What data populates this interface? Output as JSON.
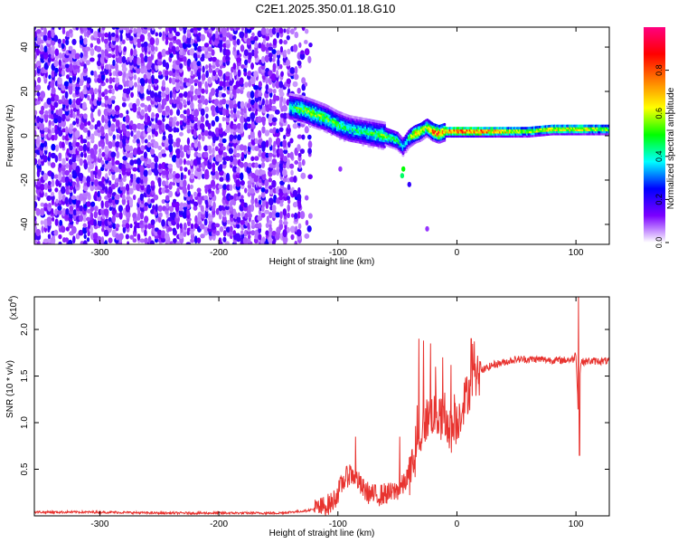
{
  "figure_title": "C2E1.2025.350.01.18.G10",
  "chart_data": [
    {
      "type": "heatmap",
      "title": "C2E1.2025.350.01.18.G10",
      "xlabel": "Height of straight line (km)",
      "ylabel": "Frequency (Hz)",
      "xlim": [
        -355,
        128
      ],
      "ylim": [
        -49,
        49
      ],
      "xticks": [
        -300,
        -200,
        -100,
        0,
        100
      ],
      "yticks": [
        -40,
        -20,
        0,
        20,
        40
      ],
      "xtick_labels": [
        "-300",
        "-200",
        "-100",
        "0",
        "100"
      ],
      "ytick_labels": [
        "-40",
        "-20",
        "0",
        "20",
        "40"
      ],
      "colorbar": {
        "label": "Normalized spectral amplitude",
        "range": [
          0,
          1
        ],
        "ticks": [
          0.0,
          0.2,
          0.4,
          0.6,
          0.8
        ],
        "tick_labels": [
          "0.0",
          "0.2",
          "0.4",
          "0.6",
          "0.8"
        ],
        "colormap": [
          "#ffffff",
          "#7b00ff",
          "#0000ff",
          "#00ffff",
          "#00ff00",
          "#ffff00",
          "#ff8000",
          "#ff0000",
          "#ff0080"
        ]
      },
      "noise_region": {
        "x_range": [
          -355,
          -120
        ],
        "freq_range": [
          -49,
          49
        ],
        "typical_amplitude": 0.15
      },
      "signal_ridge": {
        "x": [
          -140,
          -130,
          -120,
          -110,
          -100,
          -90,
          -80,
          -70,
          -60,
          -50,
          -45,
          -40,
          -35,
          -30,
          -25,
          -20,
          -15,
          -10,
          0,
          20,
          40,
          60,
          80,
          100,
          128
        ],
        "frequency": [
          13,
          12,
          10,
          8,
          5,
          3,
          2,
          1,
          0,
          -2,
          -5,
          -1,
          1,
          2,
          4,
          2,
          1,
          2,
          2,
          2,
          2,
          2,
          3,
          3,
          3
        ],
        "amplitude": [
          0.45,
          0.55,
          0.6,
          0.55,
          0.5,
          0.45,
          0.45,
          0.5,
          0.55,
          0.5,
          0.4,
          0.5,
          0.75,
          0.7,
          0.6,
          0.85,
          0.9,
          0.85,
          0.9,
          0.9,
          0.75,
          0.6,
          0.7,
          0.75,
          0.6
        ]
      }
    },
    {
      "type": "line",
      "xlabel": "Height of straight line (km)",
      "ylabel": "SNR (10 * v/v)",
      "y_scale_label": "(x10",
      "y_scale_exponent": "4",
      "y_multiplier": 10000,
      "xlim": [
        -355,
        128
      ],
      "ylim": [
        0,
        2.35
      ],
      "xticks": [
        -300,
        -200,
        -100,
        0,
        100
      ],
      "yticks": [
        0.5,
        1.0,
        1.5,
        2.0
      ],
      "xtick_labels": [
        "-300",
        "-200",
        "-100",
        "0",
        "100"
      ],
      "ytick_labels": [
        "0.5",
        "1.0",
        "1.5",
        "2.0"
      ],
      "color": "#e8332f",
      "series": [
        {
          "name": "SNR",
          "x": [
            -355,
            -300,
            -250,
            -200,
            -150,
            -130,
            -115,
            -105,
            -100,
            -95,
            -90,
            -85,
            -80,
            -75,
            -70,
            -65,
            -60,
            -55,
            -50,
            -45,
            -40,
            -35,
            -30,
            -25,
            -20,
            -15,
            -10,
            -5,
            0,
            5,
            10,
            15,
            20,
            30,
            40,
            50,
            60,
            70,
            80,
            90,
            98,
            100,
            102,
            104,
            110,
            128
          ],
          "y": [
            0.04,
            0.04,
            0.03,
            0.03,
            0.03,
            0.05,
            0.08,
            0.14,
            0.25,
            0.38,
            0.45,
            0.42,
            0.3,
            0.25,
            0.22,
            0.22,
            0.24,
            0.24,
            0.28,
            0.33,
            0.45,
            0.6,
            0.9,
            1.05,
            1.1,
            1.05,
            1.0,
            0.9,
            1.0,
            1.2,
            1.35,
            1.45,
            1.55,
            1.62,
            1.65,
            1.68,
            1.68,
            1.68,
            1.67,
            1.67,
            1.68,
            1.75,
            1.1,
            1.65,
            1.66,
            1.66
          ]
        }
      ],
      "spikes": {
        "x": [
          -90,
          -85,
          -48,
          -32,
          -28,
          -22,
          -18,
          -12,
          -5,
          12,
          102,
          103
        ],
        "y": [
          0.55,
          0.85,
          0.85,
          1.9,
          1.88,
          1.85,
          1.6,
          1.7,
          1.62,
          1.9,
          2.35,
          0.65
        ]
      }
    }
  ]
}
